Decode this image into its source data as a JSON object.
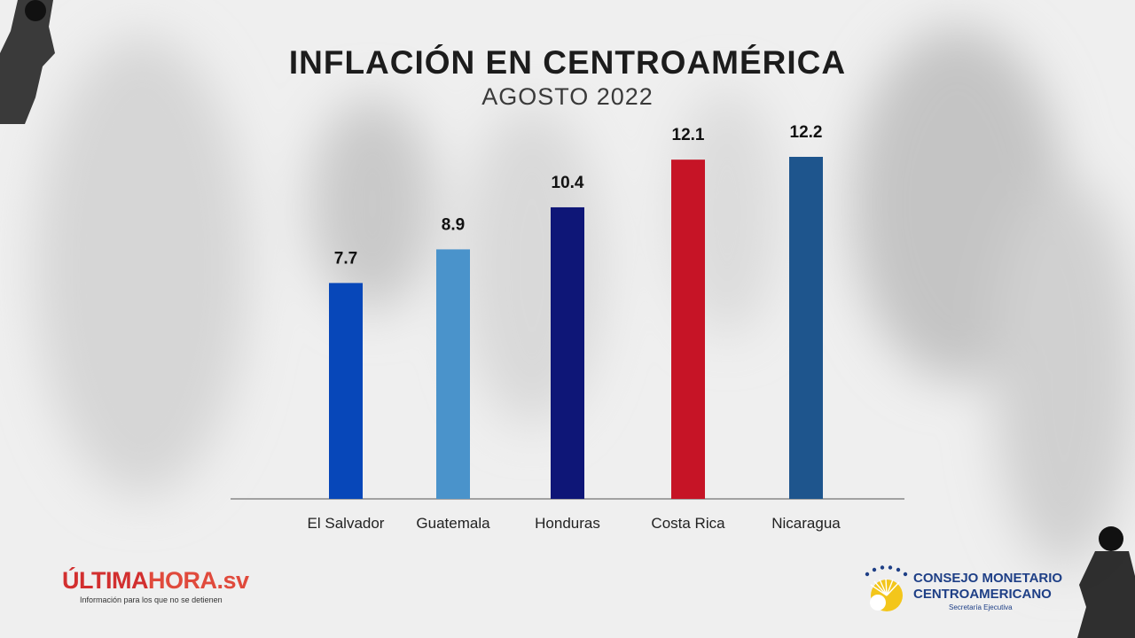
{
  "title": "INFLACIÓN EN CENTROAMÉRICA",
  "subtitle": "AGOSTO 2022",
  "chart_data": {
    "type": "bar",
    "title": "INFLACIÓN EN CENTROAMÉRICA",
    "subtitle": "AGOSTO 2022",
    "categories": [
      "El Salvador",
      "Guatemala",
      "Honduras",
      "Costa Rica",
      "Nicaragua"
    ],
    "values": [
      7.7,
      8.9,
      10.4,
      12.1,
      12.2
    ],
    "value_labels": [
      "7.7",
      "8.9",
      "10.4",
      "12.1",
      "12.2"
    ],
    "colors": [
      "#0747b9",
      "#4a93cb",
      "#0e1677",
      "#c61426",
      "#1e558d"
    ],
    "ylim": [
      0,
      13.5
    ],
    "grid": false,
    "xlabel": "",
    "ylabel": ""
  },
  "logos": {
    "ultimahora": {
      "part1": "ÚLTIMA",
      "part2": "HORA",
      "part3": ".sv",
      "tagline": "Información para los que no se detienen"
    },
    "cmca": {
      "line1": "CONSEJO MONETARIO",
      "line2": "CENTROAMERICANO",
      "line3": "Secretaría Ejecutiva"
    }
  }
}
